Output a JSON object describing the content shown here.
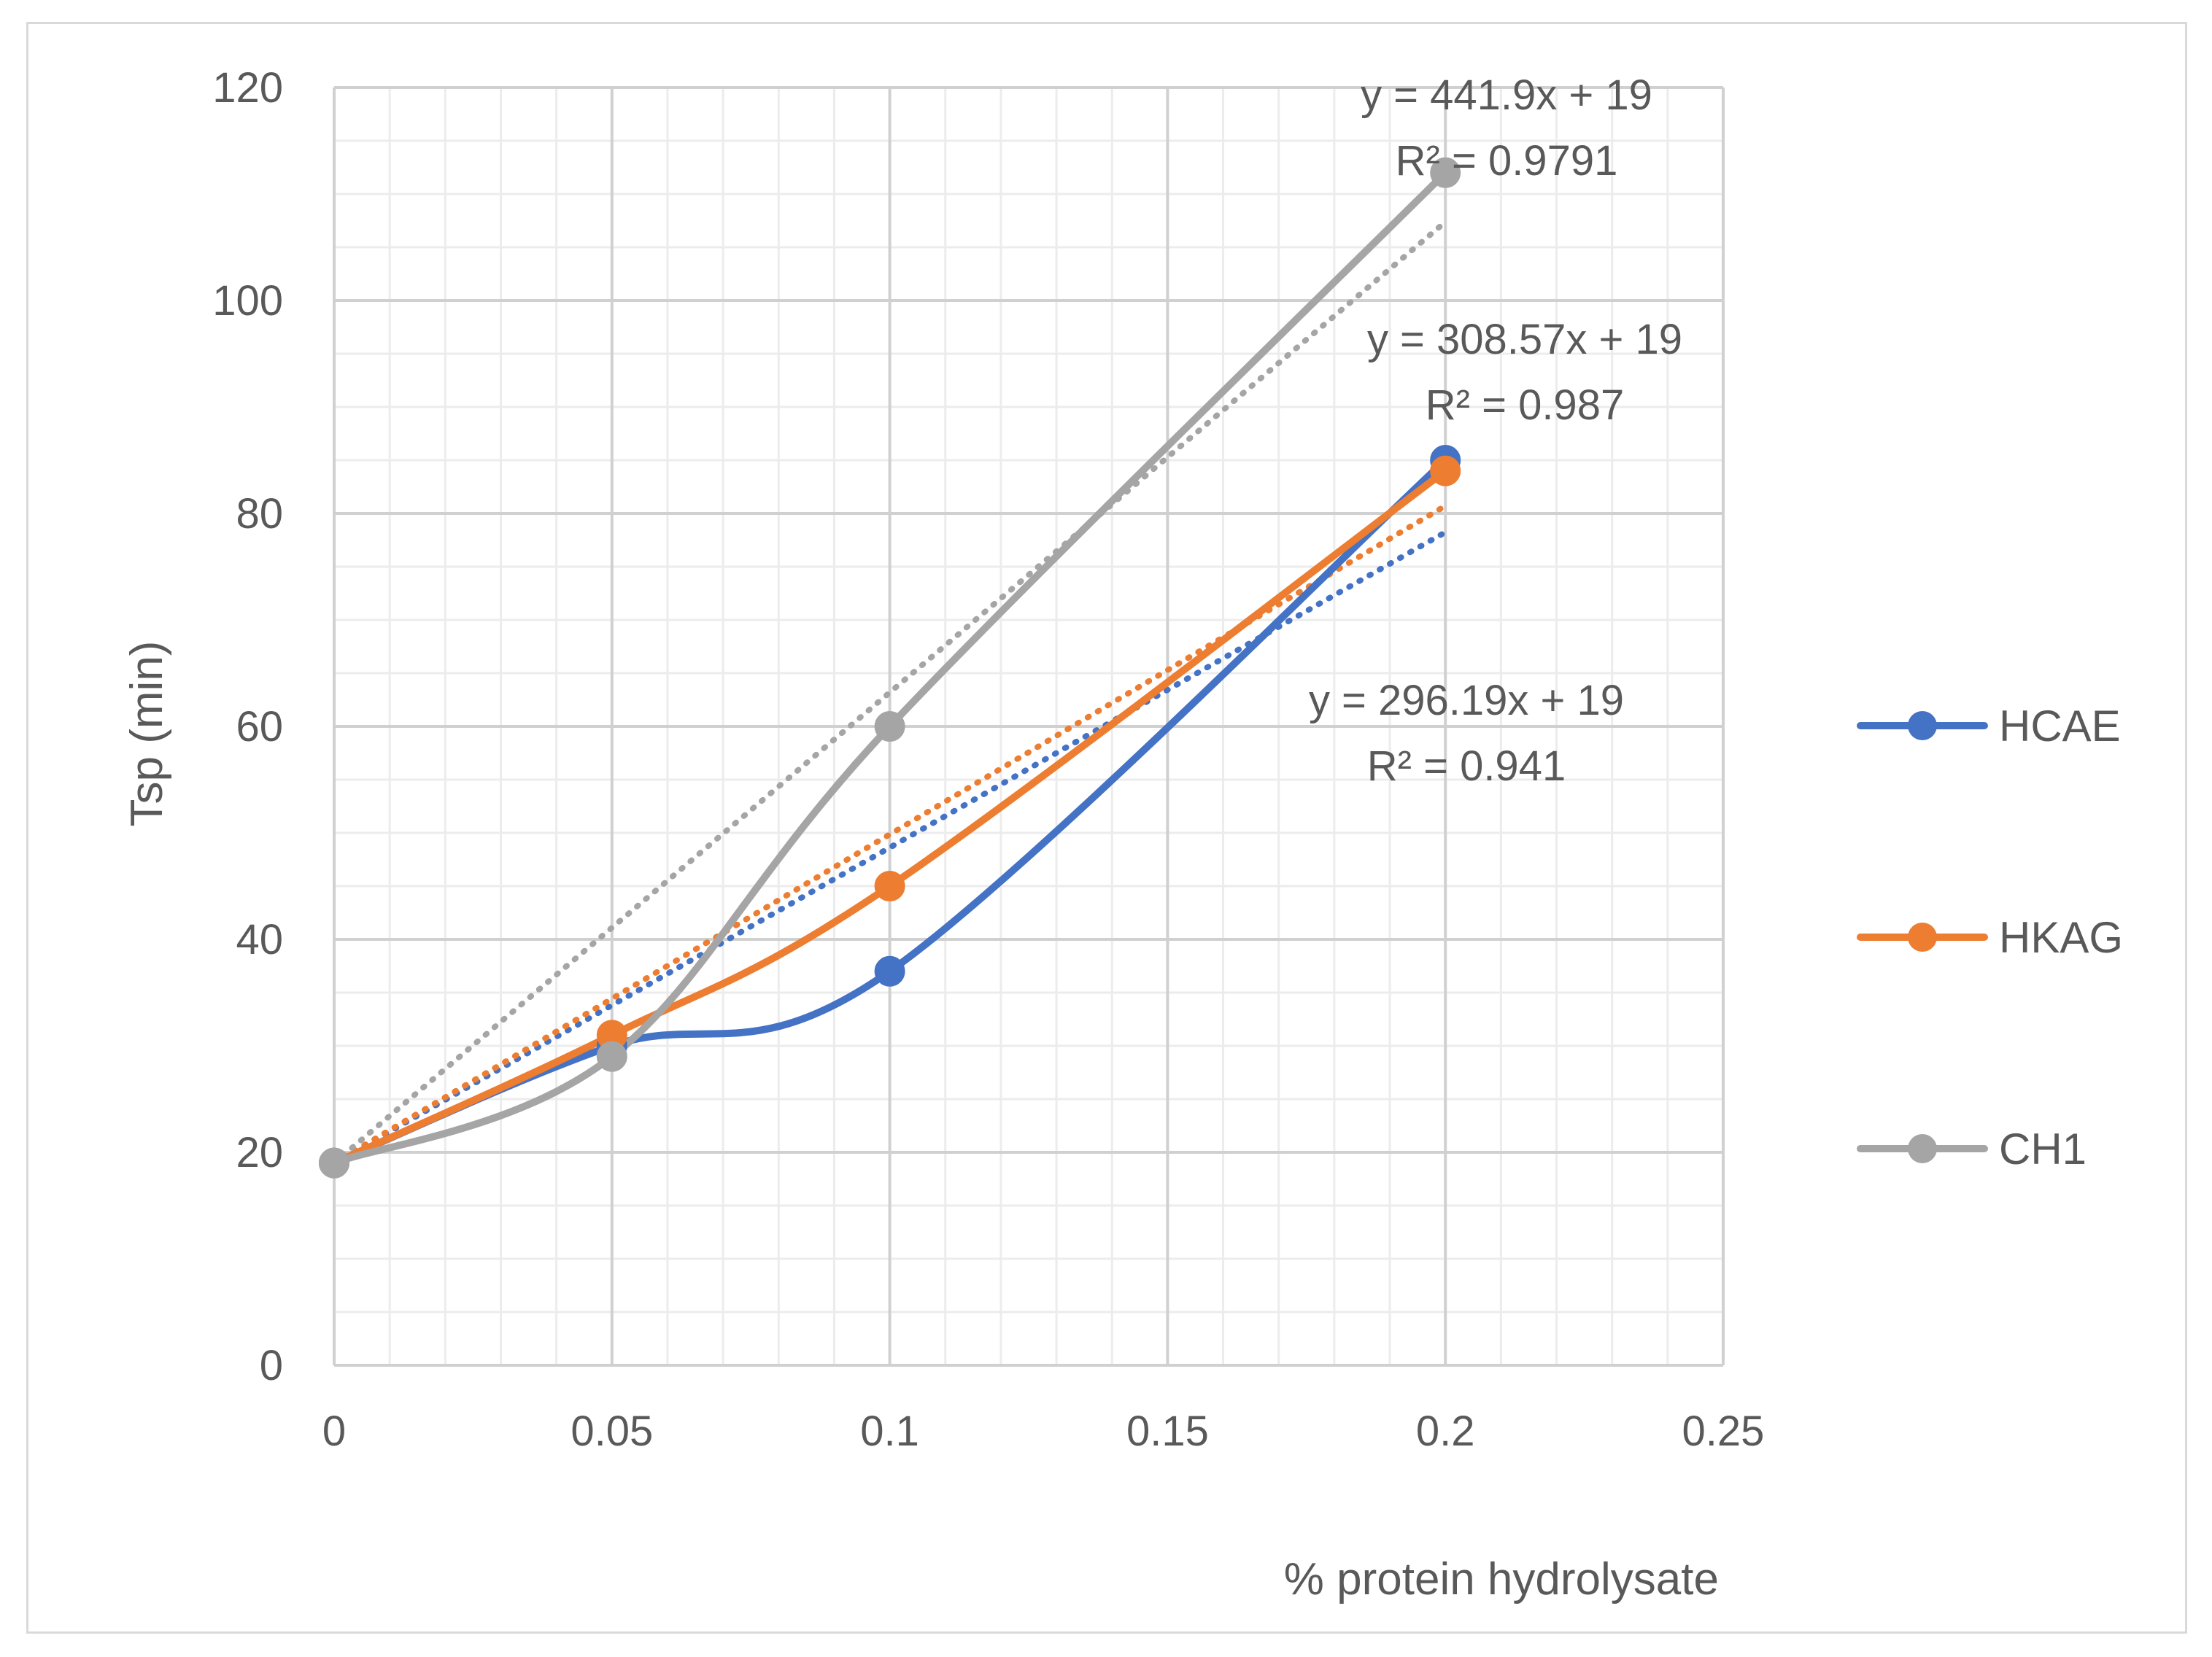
{
  "chart_data": {
    "type": "line",
    "xlabel": "% protein hydrolysate",
    "ylabel": "Tsp (min)",
    "xlim": [
      0,
      0.25
    ],
    "ylim": [
      0,
      120
    ],
    "x_ticks": [
      "0",
      "0.05",
      "0.1",
      "0.15",
      "0.2",
      "0.25"
    ],
    "y_ticks": [
      "0",
      "20",
      "40",
      "60",
      "80",
      "100",
      "120"
    ],
    "x_tick_values": [
      0,
      0.05,
      0.1,
      0.15,
      0.2,
      0.25
    ],
    "y_tick_values": [
      0,
      20,
      40,
      60,
      80,
      100,
      120
    ],
    "grid": true,
    "minor_grid": true,
    "legend_position": "right",
    "series": [
      {
        "name": "HCAE",
        "color": "#4472C4",
        "x": [
          0,
          0.05,
          0.1,
          0.2
        ],
        "y": [
          19,
          30,
          37,
          85
        ],
        "trendline": {
          "slope": 296.19,
          "intercept": 19,
          "equation": "y = 296.19x + 19",
          "r2": "R² = 0.941"
        }
      },
      {
        "name": "HKAG",
        "color": "#ED7D31",
        "x": [
          0,
          0.05,
          0.1,
          0.2
        ],
        "y": [
          19,
          31,
          45,
          84
        ],
        "trendline": {
          "slope": 308.57,
          "intercept": 19,
          "equation": "y = 308.57x + 19",
          "r2": "R² = 0.987"
        }
      },
      {
        "name": "CH1",
        "color": "#A5A5A5",
        "x": [
          0,
          0.05,
          0.1,
          0.2
        ],
        "y": [
          19,
          29,
          60,
          112
        ],
        "trendline": {
          "slope": 441.9,
          "intercept": 19,
          "equation": "y = 441.9x + 19",
          "r2": "R² = 0.9791"
        }
      }
    ]
  }
}
